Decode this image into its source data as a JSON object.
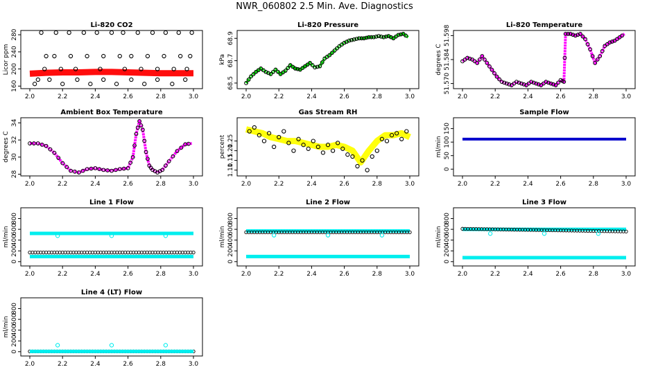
{
  "page": {
    "title": "NWR_060802  2.5 Min. Ave. Diagnostics"
  },
  "colors": {
    "black": "#000000",
    "red": "#ff0000",
    "green": "#00cc00",
    "magenta": "#ff00ff",
    "yellow": "#ffff00",
    "blue": "#0000cc",
    "cyan": "#00eeee"
  },
  "chart_data": [
    {
      "id": "co2",
      "type": "scatter",
      "title": "Li-820 CO2",
      "ylabel": "Licor ppm",
      "xlim": [
        2.0,
        3.0
      ],
      "ylim": [
        154,
        290
      ],
      "yticks": [
        160,
        200,
        240,
        280
      ],
      "xticks": [
        "2.0",
        "2.2",
        "2.4",
        "2.6",
        "2.8",
        "3.0"
      ],
      "series": [
        {
          "name": "fill",
          "color": "red",
          "style": "band",
          "x": [
            2.0,
            2.1,
            2.2,
            2.3,
            2.4,
            2.5,
            2.6,
            2.7,
            2.8,
            2.9,
            3.0
          ],
          "y": [
            189,
            191,
            192,
            192,
            193,
            193,
            192,
            191,
            190,
            190,
            190
          ]
        },
        {
          "name": "points",
          "color": "black",
          "style": "open",
          "x": [
            2.03,
            2.07,
            2.12,
            2.16,
            2.2,
            2.24,
            2.29,
            2.33,
            2.37,
            2.41,
            2.45,
            2.5,
            2.53,
            2.57,
            2.62,
            2.66,
            2.7,
            2.75,
            2.78,
            2.83,
            2.87,
            2.91,
            2.95,
            2.99,
            2.05,
            2.1,
            2.15,
            2.25,
            2.35,
            2.45,
            2.55,
            2.62,
            2.72,
            2.82,
            2.92,
            2.98,
            2.09,
            2.19,
            2.28,
            2.43,
            2.58,
            2.68,
            2.78,
            2.88,
            2.96
          ],
          "y": [
            165,
            285,
            175,
            285,
            165,
            285,
            175,
            285,
            165,
            285,
            175,
            285,
            165,
            285,
            175,
            285,
            165,
            285,
            175,
            285,
            165,
            285,
            175,
            285,
            175,
            230,
            230,
            230,
            230,
            230,
            230,
            230,
            230,
            230,
            230,
            230,
            200,
            200,
            200,
            200,
            200,
            200,
            200,
            200,
            200
          ]
        }
      ]
    },
    {
      "id": "pressure",
      "type": "line",
      "title": "Li-820 Pressure",
      "ylabel": "kPa",
      "xlim": [
        2.0,
        3.0
      ],
      "ylim": [
        68.45,
        68.97
      ],
      "yticks": [
        68.5,
        68.7,
        68.9
      ],
      "xticks": [
        "2.0",
        "2.2",
        "2.4",
        "2.6",
        "2.8",
        "3.0"
      ],
      "series": [
        {
          "name": "pressure",
          "color": "green",
          "style": "line",
          "x": [
            2.0,
            2.03,
            2.06,
            2.09,
            2.12,
            2.15,
            2.18,
            2.21,
            2.24,
            2.27,
            2.3,
            2.33,
            2.36,
            2.39,
            2.42,
            2.45,
            2.48,
            2.51,
            2.54,
            2.57,
            2.6,
            2.63,
            2.66,
            2.69,
            2.72,
            2.75,
            2.78,
            2.81,
            2.84,
            2.87,
            2.9,
            2.93,
            2.96,
            2.99
          ],
          "y": [
            68.5,
            68.56,
            68.6,
            68.63,
            68.6,
            68.58,
            68.62,
            68.58,
            68.61,
            68.66,
            68.63,
            68.62,
            68.65,
            68.68,
            68.64,
            68.65,
            68.72,
            68.75,
            68.79,
            68.83,
            68.86,
            68.88,
            68.89,
            68.9,
            68.9,
            68.91,
            68.91,
            68.92,
            68.91,
            68.92,
            68.9,
            68.93,
            68.94,
            68.91
          ]
        }
      ]
    },
    {
      "id": "licor_temp",
      "type": "line",
      "title": "Li-820 Temperature",
      "ylabel": "degrees C",
      "xlim": [
        2.0,
        3.0
      ],
      "ylim": [
        51.567,
        51.601
      ],
      "yticks": [
        51.57,
        51.584,
        51.598
      ],
      "ytick_labels": [
        "51.570",
        "51.584",
        "51.598"
      ],
      "xticks": [
        "2.0",
        "2.2",
        "2.4",
        "2.6",
        "2.8",
        "3.0"
      ],
      "series": [
        {
          "name": "temp",
          "color": "magenta",
          "style": "line",
          "x": [
            2.0,
            2.03,
            2.06,
            2.09,
            2.12,
            2.15,
            2.18,
            2.21,
            2.24,
            2.27,
            2.3,
            2.33,
            2.36,
            2.39,
            2.42,
            2.45,
            2.48,
            2.51,
            2.54,
            2.57,
            2.6,
            2.62,
            2.63,
            2.66,
            2.69,
            2.72,
            2.75,
            2.78,
            2.81,
            2.84,
            2.87,
            2.9,
            2.93,
            2.96,
            2.99
          ],
          "y": [
            51.583,
            51.585,
            51.584,
            51.582,
            51.586,
            51.582,
            51.578,
            51.574,
            51.571,
            51.57,
            51.569,
            51.571,
            51.57,
            51.569,
            51.571,
            51.57,
            51.569,
            51.571,
            51.57,
            51.569,
            51.572,
            51.571,
            51.599,
            51.599,
            51.598,
            51.599,
            51.596,
            51.59,
            51.582,
            51.586,
            51.592,
            51.594,
            51.595,
            51.597,
            51.599
          ]
        }
      ]
    },
    {
      "id": "box_temp",
      "type": "line",
      "title": "Ambient Box Temperature",
      "ylabel": "degrees C",
      "xlim": [
        2.0,
        3.0
      ],
      "ylim": [
        27.8,
        34.6
      ],
      "yticks": [
        28,
        30,
        32,
        34
      ],
      "xticks": [
        "2.0",
        "2.2",
        "2.4",
        "2.6",
        "2.8",
        "3.0"
      ],
      "series": [
        {
          "name": "temp",
          "color": "magenta",
          "style": "line",
          "x": [
            2.0,
            2.05,
            2.1,
            2.15,
            2.2,
            2.25,
            2.3,
            2.35,
            2.4,
            2.45,
            2.5,
            2.55,
            2.6,
            2.63,
            2.65,
            2.67,
            2.69,
            2.71,
            2.73,
            2.75,
            2.78,
            2.81,
            2.85,
            2.9,
            2.95,
            2.99
          ],
          "y": [
            31.6,
            31.6,
            31.3,
            30.5,
            29.3,
            28.4,
            28.2,
            28.6,
            28.7,
            28.5,
            28.4,
            28.6,
            28.7,
            30.0,
            32.7,
            34.2,
            33.2,
            30.6,
            29.0,
            28.5,
            28.2,
            28.5,
            29.5,
            30.7,
            31.5,
            31.6
          ]
        }
      ]
    },
    {
      "id": "rh",
      "type": "scatter",
      "title": "Gas Stream RH",
      "ylabel": "percent",
      "xlim": [
        2.0,
        3.0
      ],
      "ylim": [
        1.07,
        1.37
      ],
      "yticks": [
        1.1,
        1.15,
        1.2,
        1.25
      ],
      "ytick_labels": [
        "1.10",
        "1.15",
        "1.20",
        "1.25"
      ],
      "xticks": [
        "2.0",
        "2.2",
        "2.4",
        "2.6",
        "2.8",
        "3.0"
      ],
      "series": [
        {
          "name": "band",
          "color": "yellow",
          "style": "band",
          "x": [
            2.0,
            2.05,
            2.1,
            2.15,
            2.2,
            2.25,
            2.3,
            2.35,
            2.4,
            2.45,
            2.5,
            2.55,
            2.6,
            2.65,
            2.7,
            2.75,
            2.8,
            2.85,
            2.9,
            2.95,
            3.0
          ],
          "y": [
            1.31,
            1.3,
            1.29,
            1.27,
            1.26,
            1.25,
            1.25,
            1.24,
            1.23,
            1.22,
            1.22,
            1.23,
            1.22,
            1.2,
            1.14,
            1.2,
            1.25,
            1.28,
            1.28,
            1.29,
            1.27
          ]
        },
        {
          "name": "points",
          "color": "black",
          "style": "open",
          "x": [
            2.02,
            2.05,
            2.08,
            2.11,
            2.14,
            2.17,
            2.2,
            2.23,
            2.26,
            2.29,
            2.32,
            2.35,
            2.38,
            2.41,
            2.44,
            2.47,
            2.5,
            2.53,
            2.56,
            2.59,
            2.62,
            2.65,
            2.68,
            2.71,
            2.74,
            2.77,
            2.8,
            2.83,
            2.86,
            2.89,
            2.92,
            2.95,
            2.98
          ],
          "y": [
            1.3,
            1.32,
            1.28,
            1.25,
            1.29,
            1.22,
            1.27,
            1.3,
            1.24,
            1.2,
            1.26,
            1.23,
            1.21,
            1.25,
            1.22,
            1.19,
            1.23,
            1.2,
            1.24,
            1.21,
            1.18,
            1.17,
            1.12,
            1.15,
            1.1,
            1.17,
            1.2,
            1.26,
            1.25,
            1.28,
            1.29,
            1.26,
            1.3
          ]
        }
      ]
    },
    {
      "id": "sample_flow",
      "type": "line",
      "title": "Sample Flow",
      "ylabel": "ml/min",
      "xlim": [
        2.0,
        3.0
      ],
      "ylim": [
        -25,
        190
      ],
      "yticks": [
        0,
        50,
        100,
        150
      ],
      "xticks": [
        "2.0",
        "2.2",
        "2.4",
        "2.6",
        "2.8",
        "3.0"
      ],
      "series": [
        {
          "name": "flow",
          "color": "blue",
          "style": "thick",
          "x": [
            2.0,
            3.0
          ],
          "y": [
            111,
            111
          ]
        }
      ]
    },
    {
      "id": "line1",
      "type": "scatter",
      "title": "Line 1 Flow",
      "ylabel": "ml/min",
      "xlim": [
        2.0,
        3.0
      ],
      "ylim": [
        -80,
        1000
      ],
      "yticks": [
        0,
        200,
        400,
        600,
        800
      ],
      "xticks": [
        "2.0",
        "2.2",
        "2.4",
        "2.6",
        "2.8",
        "3.0"
      ],
      "series": [
        {
          "name": "cyan_high",
          "color": "cyan",
          "style": "band",
          "x": [
            2.0,
            3.0
          ],
          "y": [
            525,
            525
          ]
        },
        {
          "name": "cyan_low",
          "color": "cyan",
          "style": "band",
          "x": [
            2.0,
            3.0
          ],
          "y": [
            95,
            95
          ]
        },
        {
          "name": "black",
          "color": "black",
          "style": "dense",
          "x": [
            2.0,
            3.0
          ],
          "y": [
            170,
            170
          ]
        },
        {
          "name": "dips",
          "color": "cyan",
          "style": "open",
          "x": [
            2.17,
            2.5,
            2.83
          ],
          "y": [
            480,
            480,
            480
          ]
        }
      ]
    },
    {
      "id": "line2",
      "type": "scatter",
      "title": "Line 2 Flow",
      "ylabel": "ml/min",
      "xlim": [
        2.0,
        3.0
      ],
      "ylim": [
        -80,
        1000
      ],
      "yticks": [
        0,
        200,
        400,
        600,
        800
      ],
      "xticks": [
        "2.0",
        "2.2",
        "2.4",
        "2.6",
        "2.8",
        "3.0"
      ],
      "series": [
        {
          "name": "cyan_high",
          "color": "cyan",
          "style": "band",
          "x": [
            2.0,
            3.0
          ],
          "y": [
            570,
            570
          ]
        },
        {
          "name": "cyan_low",
          "color": "cyan",
          "style": "band",
          "x": [
            2.0,
            3.0
          ],
          "y": [
            95,
            95
          ]
        },
        {
          "name": "black",
          "color": "black",
          "style": "dense",
          "x": [
            2.0,
            3.0
          ],
          "y": [
            545,
            545
          ]
        },
        {
          "name": "dips",
          "color": "cyan",
          "style": "open",
          "x": [
            2.17,
            2.5,
            2.83
          ],
          "y": [
            490,
            490,
            490
          ]
        }
      ]
    },
    {
      "id": "line3",
      "type": "scatter",
      "title": "Line 3 Flow",
      "ylabel": "ml/min",
      "xlim": [
        2.0,
        3.0
      ],
      "ylim": [
        -80,
        1000
      ],
      "yticks": [
        0,
        200,
        400,
        600,
        800
      ],
      "xticks": [
        "2.0",
        "2.2",
        "2.4",
        "2.6",
        "2.8",
        "3.0"
      ],
      "series": [
        {
          "name": "cyan_high",
          "color": "cyan",
          "style": "band",
          "x": [
            2.0,
            3.0
          ],
          "y": [
            600,
            600
          ]
        },
        {
          "name": "cyan_low",
          "color": "cyan",
          "style": "band",
          "x": [
            2.0,
            3.0
          ],
          "y": [
            75,
            75
          ]
        },
        {
          "name": "black",
          "color": "black",
          "style": "dense",
          "x": [
            2.0,
            3.0
          ],
          "y": [
            610,
            560
          ]
        },
        {
          "name": "dips",
          "color": "cyan",
          "style": "open",
          "x": [
            2.17,
            2.5,
            2.83
          ],
          "y": [
            520,
            520,
            520
          ]
        }
      ]
    },
    {
      "id": "line4",
      "type": "scatter",
      "title": "Line 4 (LT) Flow",
      "ylabel": "ml/min",
      "xlim": [
        2.0,
        3.0
      ],
      "ylim": [
        -80,
        1000
      ],
      "yticks": [
        0,
        200,
        400,
        600,
        800
      ],
      "xticks": [
        "2.0",
        "2.2",
        "2.4",
        "2.6",
        "2.8",
        "3.0"
      ],
      "series": [
        {
          "name": "black",
          "color": "black",
          "style": "dense",
          "x": [
            2.0,
            3.0
          ],
          "y": [
            5,
            5
          ]
        },
        {
          "name": "cyan_low",
          "color": "cyan",
          "style": "band",
          "x": [
            2.0,
            3.0
          ],
          "y": [
            5,
            5
          ]
        },
        {
          "name": "spikes",
          "color": "cyan",
          "style": "open",
          "x": [
            2.17,
            2.5,
            2.83
          ],
          "y": [
            120,
            120,
            120
          ]
        }
      ]
    }
  ]
}
